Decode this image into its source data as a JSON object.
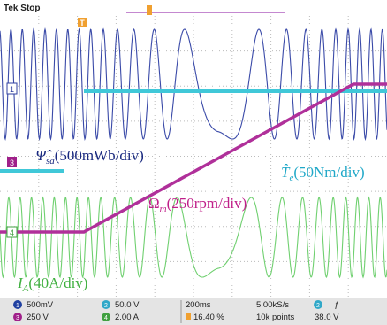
{
  "header": {
    "status": "Tek Stop",
    "trigger_marker": "T"
  },
  "channel_markers": [
    "1",
    "3",
    "4"
  ],
  "annotations": [
    {
      "symbol": "Ψ̂",
      "subscript": "sa",
      "text": "(500mWb/div)"
    },
    {
      "symbol": "T̂",
      "subscript": "e",
      "text": "(50Nm/div)"
    },
    {
      "symbol": "Ω",
      "subscript": "m",
      "text": "(250rpm/div)"
    },
    {
      "symbol": "I",
      "subscript": "A",
      "text": "(40A/div)"
    }
  ],
  "footer": {
    "channels": [
      {
        "number": "1",
        "scale": "500mV"
      },
      {
        "number": "2",
        "scale": "50.0 V"
      },
      {
        "number": "3",
        "scale": "250 V"
      },
      {
        "number": "4",
        "scale": "2.00 A"
      }
    ],
    "timebase": "200ms",
    "trigger_position": "16.40 %",
    "sample_rate": "5.00kS/s",
    "record_length": "10k points",
    "trigger": {
      "channel": "2",
      "slope": "ƒ",
      "level": "38.0 V"
    }
  }
}
